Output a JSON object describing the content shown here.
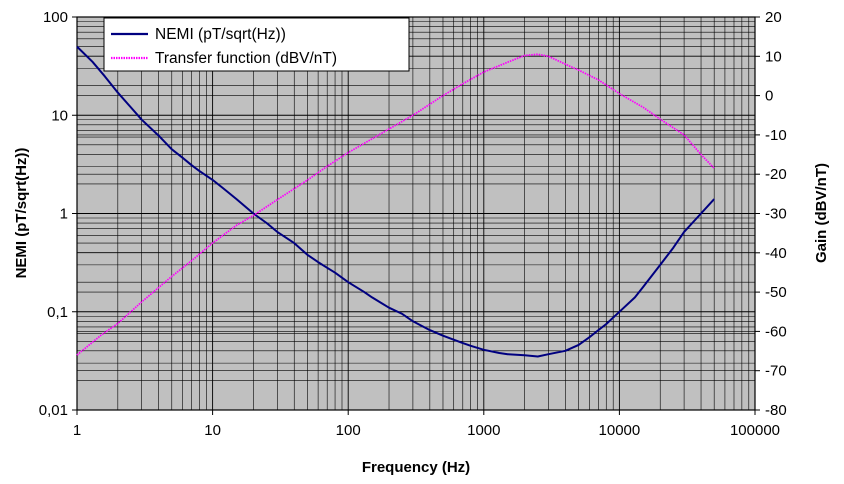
{
  "chart_data": {
    "type": "line",
    "title": "",
    "xlabel": "Frequency (Hz)",
    "ylabel_left": "NEMI (pT/sqrt(Hz))",
    "ylabel_right": "Gain (dBV/nT)",
    "x_scale": "log",
    "y_left_scale": "log",
    "xlim": [
      1,
      100000
    ],
    "ylim_left": [
      0.01,
      100
    ],
    "ylim_right": [
      -80,
      20
    ],
    "x_tick_labels": [
      "1",
      "10",
      "100",
      "1000",
      "10000",
      "100000"
    ],
    "y_left_tick_labels": [
      "100",
      "10",
      "1",
      "0,1",
      "0,01"
    ],
    "y_right_tick_labels": [
      "20",
      "10",
      "0",
      "-10",
      "-20",
      "-30",
      "-40",
      "-50",
      "-60",
      "-70",
      "-80"
    ],
    "grid": true,
    "plot_background": "#c0c0c0",
    "legend_position": "top-left",
    "series": [
      {
        "name": "NEMI (pT/sqrt(Hz))",
        "axis": "left",
        "color": "#000080",
        "x": [
          1,
          1.3,
          1.6,
          2,
          2.5,
          3,
          4,
          5,
          6,
          7,
          8,
          10,
          12,
          15,
          20,
          25,
          30,
          40,
          50,
          60,
          70,
          80,
          100,
          130,
          150,
          200,
          250,
          300,
          400,
          500,
          600,
          700,
          800,
          1000,
          1300,
          1500,
          2000,
          2500,
          3000,
          4000,
          5000,
          6000,
          7000,
          8000,
          10000,
          13000,
          15000,
          20000,
          25000,
          30000,
          40000,
          50000
        ],
        "y": [
          50,
          35,
          25,
          17,
          12,
          9,
          6.2,
          4.5,
          3.7,
          3.1,
          2.7,
          2.2,
          1.8,
          1.4,
          1.0,
          0.8,
          0.65,
          0.5,
          0.38,
          0.32,
          0.28,
          0.25,
          0.2,
          0.16,
          0.14,
          0.11,
          0.095,
          0.08,
          0.065,
          0.057,
          0.052,
          0.048,
          0.045,
          0.041,
          0.038,
          0.037,
          0.036,
          0.035,
          0.037,
          0.04,
          0.046,
          0.055,
          0.065,
          0.075,
          0.1,
          0.14,
          0.18,
          0.3,
          0.45,
          0.65,
          1.0,
          1.4
        ]
      },
      {
        "name": "Transfer function (dBV/nT)",
        "axis": "right",
        "color": "#ff00ff",
        "x": [
          1,
          1.5,
          2,
          3,
          5,
          7,
          10,
          15,
          20,
          30,
          50,
          70,
          100,
          150,
          200,
          300,
          500,
          700,
          1000,
          1500,
          2000,
          2500,
          3000,
          4000,
          5000,
          7000,
          10000,
          15000,
          20000,
          30000,
          40000,
          50000
        ],
        "y": [
          -66,
          -61,
          -58,
          -52.5,
          -46,
          -42,
          -37.5,
          -33,
          -30.5,
          -26.5,
          -21.5,
          -18,
          -14.5,
          -11,
          -8.5,
          -5,
          0,
          3,
          6,
          8.5,
          10.2,
          10.5,
          10,
          8,
          6.5,
          4,
          0.5,
          -3,
          -6,
          -10,
          -15,
          -18.5
        ]
      }
    ]
  }
}
